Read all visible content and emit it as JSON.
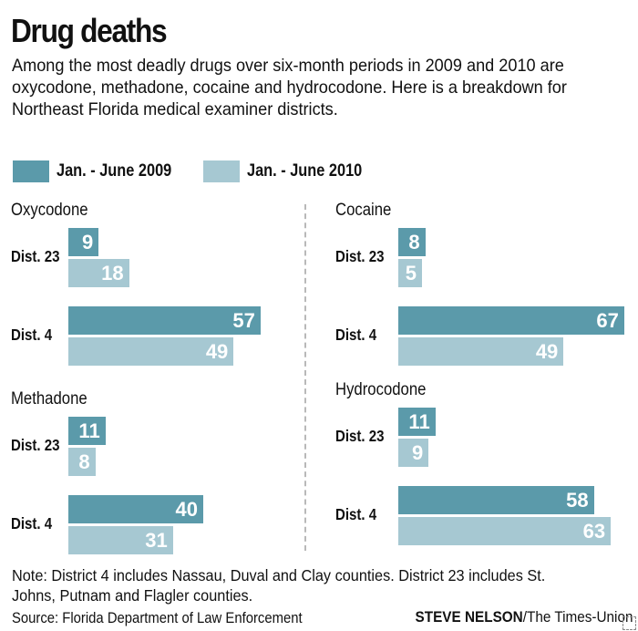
{
  "title": "Drug deaths",
  "subtitle": "Among the most deadly drugs over six-month periods in 2009 and 2010 are oxycodone, methadone, cocaine and hydrocodone. Here is a breakdown for Northeast Florida medical examiner districts.",
  "note": "Note: District 4 includes Nassau, Duval and Clay counties. District 23 includes St. Johns, Putnam and Flagler counties.",
  "source": "Source: Florida Department of Law Enforcement",
  "credit": {
    "name": "STEVE NELSON",
    "outlet": "/The Times-Union"
  },
  "colors": {
    "series_2009": "#5b9aaa",
    "series_2010": "#a6c8d2"
  },
  "chart_data": {
    "type": "bar",
    "orientation": "horizontal",
    "legend": [
      "Jan. - June 2009",
      "Jan. - June 2010"
    ],
    "panels": [
      {
        "title": "Oxycodone",
        "categories": [
          "Dist. 23",
          "Dist. 4"
        ],
        "series": [
          {
            "name": "Jan. - June 2009",
            "values": [
              9,
              57
            ]
          },
          {
            "name": "Jan. - June 2010",
            "values": [
              18,
              49
            ]
          }
        ]
      },
      {
        "title": "Methadone",
        "categories": [
          "Dist. 23",
          "Dist. 4"
        ],
        "series": [
          {
            "name": "Jan. - June 2009",
            "values": [
              11,
              40
            ]
          },
          {
            "name": "Jan. - June 2010",
            "values": [
              8,
              31
            ]
          }
        ]
      },
      {
        "title": "Cocaine",
        "categories": [
          "Dist. 23",
          "Dist. 4"
        ],
        "series": [
          {
            "name": "Jan. - June 2009",
            "values": [
              8,
              67
            ]
          },
          {
            "name": "Jan. - June 2010",
            "values": [
              5,
              49
            ]
          }
        ]
      },
      {
        "title": "Hydrocodone",
        "categories": [
          "Dist. 23",
          "Dist. 4"
        ],
        "series": [
          {
            "name": "Jan. - June 2009",
            "values": [
              11,
              58
            ]
          },
          {
            "name": "Jan. - June 2010",
            "values": [
              9,
              63
            ]
          }
        ]
      }
    ]
  }
}
